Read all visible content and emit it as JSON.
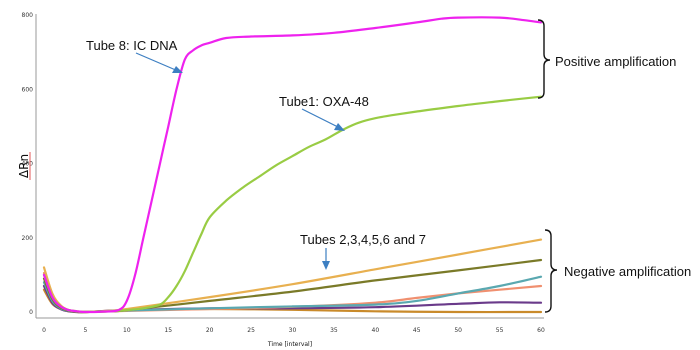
{
  "chart_data": {
    "type": "line",
    "title": "",
    "xlabel": "Time [interval]",
    "ylabel": "ΔRn",
    "xlim": [
      0,
      60
    ],
    "ylim": [
      0,
      800
    ],
    "xticks": [
      0,
      5,
      10,
      15,
      20,
      25,
      30,
      35,
      40,
      45,
      50,
      55,
      60
    ],
    "yticks": [
      0,
      200,
      400,
      600,
      800
    ],
    "grid": false,
    "series": [
      {
        "name": "Tube 8: IC DNA",
        "color": "#ee22ee",
        "x": [
          0,
          1,
          2,
          3,
          4,
          5,
          7,
          9,
          10,
          11,
          12,
          13,
          14,
          15,
          16,
          17,
          18,
          19,
          20,
          22,
          25,
          30,
          35,
          40,
          45,
          48,
          50,
          55,
          58,
          60
        ],
        "y": [
          100,
          40,
          15,
          5,
          2,
          0,
          1,
          5,
          30,
          100,
          200,
          300,
          400,
          500,
          600,
          680,
          705,
          718,
          725,
          738,
          742,
          745,
          752,
          765,
          780,
          790,
          793,
          793,
          786,
          780
        ]
      },
      {
        "name": "Tube1: OXA-48",
        "color": "#99cc44",
        "x": [
          0,
          1,
          2,
          3,
          4,
          5,
          8,
          10,
          12,
          14,
          15,
          16,
          17,
          18,
          19,
          20,
          22,
          24,
          26,
          28,
          30,
          32,
          34,
          36,
          38,
          40,
          42,
          45,
          50,
          55,
          60
        ],
        "y": [
          100,
          40,
          15,
          5,
          2,
          0,
          2,
          5,
          10,
          20,
          40,
          70,
          110,
          160,
          210,
          255,
          300,
          335,
          365,
          395,
          420,
          445,
          465,
          490,
          510,
          522,
          530,
          540,
          555,
          568,
          580
        ]
      },
      {
        "color": "#e8b050",
        "x": [
          0,
          1,
          2,
          3,
          4,
          5,
          8,
          10,
          20,
          30,
          40,
          50,
          60
        ],
        "y": [
          120,
          50,
          18,
          5,
          2,
          0,
          3,
          8,
          40,
          75,
          115,
          155,
          195
        ]
      },
      {
        "color": "#7a7a28",
        "x": [
          0,
          1,
          2,
          3,
          4,
          5,
          8,
          10,
          20,
          30,
          40,
          50,
          60
        ],
        "y": [
          90,
          35,
          12,
          4,
          1,
          0,
          2,
          5,
          30,
          55,
          85,
          112,
          140
        ]
      },
      {
        "color": "#5aa8b0",
        "x": [
          0,
          1,
          2,
          3,
          4,
          5,
          10,
          20,
          30,
          40,
          45,
          50,
          55,
          60
        ],
        "y": [
          80,
          30,
          10,
          3,
          1,
          0,
          4,
          10,
          15,
          20,
          30,
          50,
          70,
          95
        ]
      },
      {
        "color": "#f09070",
        "x": [
          0,
          1,
          2,
          3,
          4,
          5,
          10,
          20,
          30,
          40,
          45,
          50,
          55,
          60
        ],
        "y": [
          105,
          40,
          14,
          4,
          1,
          0,
          3,
          8,
          14,
          25,
          38,
          50,
          60,
          70
        ]
      },
      {
        "color": "#6a3a8a",
        "x": [
          0,
          1,
          2,
          3,
          4,
          5,
          10,
          20,
          30,
          40,
          50,
          55,
          60
        ],
        "y": [
          70,
          25,
          8,
          2,
          0,
          0,
          5,
          10,
          10,
          13,
          22,
          26,
          25
        ]
      },
      {
        "color": "#c98a2a",
        "x": [
          0,
          1,
          2,
          3,
          4,
          5,
          10,
          20,
          30,
          40,
          50,
          60
        ],
        "y": [
          60,
          22,
          8,
          2,
          0,
          0,
          5,
          8,
          6,
          2,
          0,
          0
        ]
      }
    ],
    "annotations": {
      "tube8": "Tube 8: IC DNA",
      "tube1": "Tube1: OXA-48",
      "others": "Tubes 2,3,4,5,6 and 7",
      "positive": "Positive amplification",
      "negative": "Negative amplification"
    }
  }
}
